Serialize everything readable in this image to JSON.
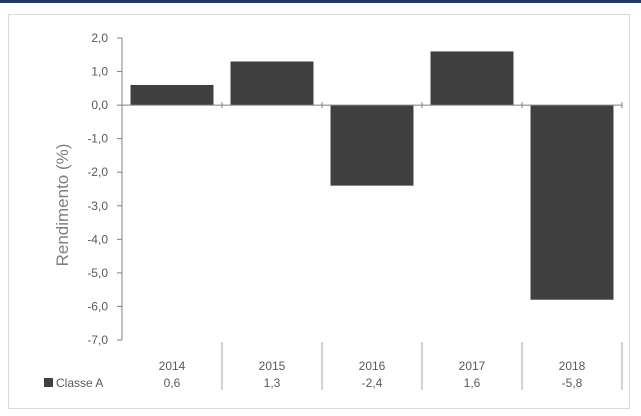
{
  "colors": {
    "accent_rule": "#1f3864",
    "bar": "#404040",
    "axis": "#808080",
    "frame": "#d9d9d9"
  },
  "chart_data": {
    "type": "bar",
    "categories": [
      "2014",
      "2015",
      "2016",
      "2017",
      "2018"
    ],
    "series": [
      {
        "name": "Classe A",
        "values": [
          0.6,
          1.3,
          -2.4,
          1.6,
          -5.8
        ],
        "labels": [
          "0,6",
          "1,3",
          "-2,4",
          "1,6",
          "-5,8"
        ]
      }
    ],
    "ylabel": "Rendimento (%)",
    "ylim": [
      -7.0,
      2.0
    ],
    "yticks": [
      "2,0",
      "1,0",
      "0,0",
      "-1,0",
      "-2,0",
      "-3,0",
      "-4,0",
      "-5,0",
      "-6,0",
      "-7,0"
    ],
    "grid": false,
    "legend": "data-table-below"
  }
}
